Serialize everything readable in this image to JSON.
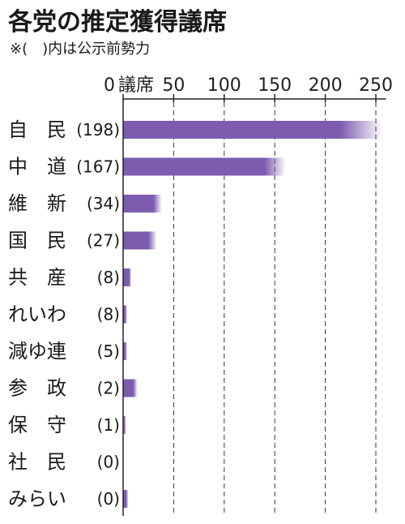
{
  "title": "各党の推定獲得議席",
  "note": "※(　)内は公示前勢力",
  "chart_data": {
    "type": "bar",
    "orientation": "horizontal",
    "title": "各党の推定獲得議席",
    "subtitle": "※(　)内は公示前勢力",
    "unit_label": "議席",
    "xlim": [
      0,
      260
    ],
    "ticks": [
      0,
      50,
      100,
      150,
      200,
      250
    ],
    "grid": true,
    "categories": [
      "自　民",
      "中　道",
      "維　新",
      "国　民",
      "共　産",
      "れいわ",
      "減ゆ連",
      "参　政",
      "保　守",
      "社　民",
      "みらい"
    ],
    "prior_labels": [
      "(198)",
      "(167)",
      "(34)",
      "(27)",
      "(8)",
      "(8)",
      "(5)",
      "(2)",
      "(1)",
      "(0)",
      "(0)"
    ],
    "bars": [
      {
        "low": 215,
        "high": 255
      },
      {
        "low": 140,
        "high": 160
      },
      {
        "low": 30,
        "high": 38
      },
      {
        "low": 25,
        "high": 33
      },
      {
        "low": 6,
        "high": 8
      },
      {
        "low": 2,
        "high": 4
      },
      {
        "low": 2,
        "high": 4
      },
      {
        "low": 10,
        "high": 14
      },
      {
        "low": 1,
        "high": 3
      },
      {
        "low": 0,
        "high": 0
      },
      {
        "low": 3,
        "high": 5
      }
    ],
    "color": "#7d5cb0"
  }
}
